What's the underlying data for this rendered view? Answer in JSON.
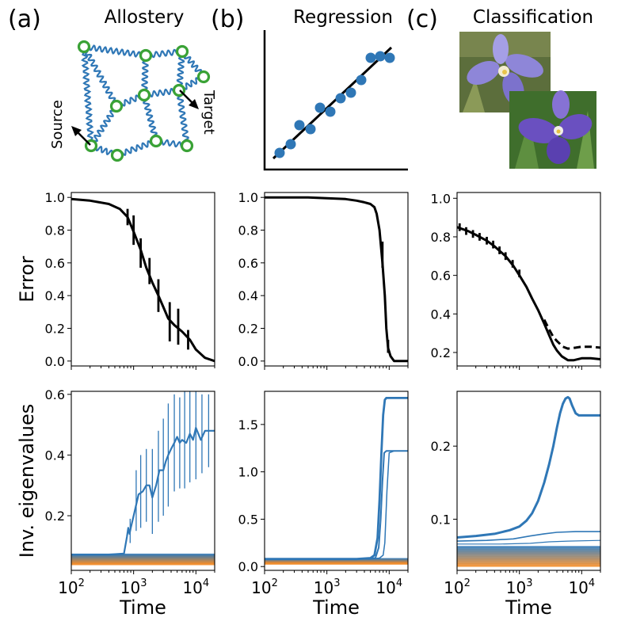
{
  "figure": {
    "panels": [
      {
        "letter": "(a)",
        "title": "Allostery"
      },
      {
        "letter": "(b)",
        "title": "Regression"
      },
      {
        "letter": "(c)",
        "title": "Classification"
      }
    ],
    "network": {
      "source_label": "Source",
      "target_label": "Target"
    },
    "colors": {
      "blue": "#2f77b6",
      "orange": "#f28c28",
      "green": "#3aa236",
      "black": "#000000",
      "iris_petal": "#8e86d8",
      "iris_dark": "#6a50c0"
    }
  },
  "chart_data": [
    {
      "type": "line",
      "panel": "a-error",
      "title": "",
      "xlabel": "",
      "ylabel": "Error",
      "xscale": "log",
      "xlim": [
        100,
        20000
      ],
      "ylim": [
        -0.03,
        1.03
      ],
      "yticks": [
        0.0,
        0.2,
        0.4,
        0.6,
        0.8,
        1.0
      ],
      "ytick_labels": [
        "0.0",
        "0.2",
        "0.4",
        "0.6",
        "0.8",
        "1.0"
      ],
      "series": [
        {
          "name": "error",
          "color": "#000000",
          "width": 3,
          "x": [
            100,
            200,
            400,
            600,
            800,
            1000,
            1300,
            1600,
            2000,
            2500,
            3000,
            3600,
            4500,
            6000,
            8000,
            10000,
            14000,
            20000
          ],
          "y": [
            0.99,
            0.98,
            0.96,
            0.93,
            0.88,
            0.79,
            0.68,
            0.57,
            0.48,
            0.4,
            0.33,
            0.26,
            0.22,
            0.18,
            0.13,
            0.07,
            0.02,
            0.0
          ]
        }
      ],
      "error_bars": [
        {
          "x": 800,
          "y": 0.88,
          "err": 0.05
        },
        {
          "x": 1000,
          "y": 0.8,
          "err": 0.09
        },
        {
          "x": 1300,
          "y": 0.66,
          "err": 0.09
        },
        {
          "x": 1800,
          "y": 0.55,
          "err": 0.08
        },
        {
          "x": 2500,
          "y": 0.4,
          "err": 0.1
        },
        {
          "x": 3800,
          "y": 0.24,
          "err": 0.12
        },
        {
          "x": 5200,
          "y": 0.21,
          "err": 0.11
        },
        {
          "x": 7500,
          "y": 0.13,
          "err": 0.06
        }
      ]
    },
    {
      "type": "line",
      "panel": "b-error",
      "title": "",
      "xlabel": "",
      "ylabel": "",
      "xscale": "log",
      "xlim": [
        100,
        20000
      ],
      "ylim": [
        -0.03,
        1.03
      ],
      "yticks": [
        0.0,
        0.2,
        0.4,
        0.6,
        0.8,
        1.0
      ],
      "ytick_labels": [
        "0.0",
        "0.2",
        "0.4",
        "0.6",
        "0.8",
        "1.0"
      ],
      "series": [
        {
          "name": "error",
          "color": "#000000",
          "width": 3,
          "x": [
            100,
            500,
            1000,
            2000,
            3000,
            4000,
            5000,
            5800,
            6300,
            7000,
            7800,
            8500,
            9000,
            9600,
            10500,
            12000,
            14000,
            20000
          ],
          "y": [
            1.0,
            1.0,
            0.995,
            0.99,
            0.98,
            0.97,
            0.96,
            0.94,
            0.9,
            0.8,
            0.6,
            0.4,
            0.2,
            0.08,
            0.03,
            0.0,
            0.0,
            0.0
          ]
        }
      ],
      "error_bars": [
        {
          "x": 7800,
          "y": 0.65,
          "err": 0.08
        },
        {
          "x": 9600,
          "y": 0.09,
          "err": 0.04
        }
      ]
    },
    {
      "type": "line",
      "panel": "c-error",
      "title": "",
      "xlabel": "",
      "ylabel": "",
      "xscale": "log",
      "xlim": [
        100,
        20000
      ],
      "ylim": [
        0.13,
        1.03
      ],
      "yticks": [
        0.2,
        0.4,
        0.6,
        0.8,
        1.0
      ],
      "ytick_labels": [
        "0.2",
        "0.4",
        "0.6",
        "0.8",
        "1.0"
      ],
      "series": [
        {
          "name": "error-solid",
          "color": "#000000",
          "width": 3,
          "x": [
            100,
            150,
            200,
            300,
            400,
            600,
            800,
            1000,
            1300,
            1600,
            2000,
            2500,
            3000,
            3500,
            4000,
            4800,
            6000,
            7500,
            10000,
            14000,
            20000
          ],
          "y": [
            0.85,
            0.83,
            0.81,
            0.78,
            0.75,
            0.7,
            0.65,
            0.6,
            0.54,
            0.48,
            0.42,
            0.35,
            0.29,
            0.24,
            0.21,
            0.18,
            0.16,
            0.16,
            0.17,
            0.17,
            0.165
          ]
        },
        {
          "name": "error-dashed",
          "color": "#000000",
          "width": 3,
          "dash": "9 5",
          "x": [
            2500,
            3000,
            3500,
            4000,
            5000,
            6000,
            8000,
            10000,
            14000,
            20000
          ],
          "y": [
            0.37,
            0.32,
            0.28,
            0.26,
            0.23,
            0.22,
            0.225,
            0.23,
            0.23,
            0.225
          ]
        }
      ],
      "error_bars": [
        {
          "x": 110,
          "y": 0.85,
          "err": 0.02
        },
        {
          "x": 140,
          "y": 0.83,
          "err": 0.02
        },
        {
          "x": 180,
          "y": 0.815,
          "err": 0.02
        },
        {
          "x": 230,
          "y": 0.8,
          "err": 0.02
        },
        {
          "x": 300,
          "y": 0.78,
          "err": 0.02
        },
        {
          "x": 380,
          "y": 0.76,
          "err": 0.02
        },
        {
          "x": 480,
          "y": 0.73,
          "err": 0.02
        },
        {
          "x": 600,
          "y": 0.7,
          "err": 0.02
        },
        {
          "x": 780,
          "y": 0.66,
          "err": 0.02
        },
        {
          "x": 1000,
          "y": 0.61,
          "err": 0.02
        }
      ]
    },
    {
      "type": "line",
      "panel": "a-eigen",
      "title": "",
      "xlabel": "Time",
      "ylabel": "Inv. eigenvalues",
      "xscale": "log",
      "xlim": [
        100,
        20000
      ],
      "ylim": [
        0.02,
        0.61
      ],
      "yticks": [
        0.2,
        0.4,
        0.6
      ],
      "ytick_labels": [
        "0.2",
        "0.4",
        "0.6"
      ],
      "xticks": [
        100,
        1000,
        10000
      ],
      "xtick_labels": [
        {
          "base": "10",
          "exp": "2"
        },
        {
          "base": "10",
          "exp": "3"
        },
        {
          "base": "10",
          "exp": "4"
        }
      ],
      "background_bands": {
        "y_top": 0.072,
        "y_bottom": 0.04,
        "count": 14
      },
      "series": [
        {
          "name": "top-eigen",
          "color": "#2f77b6",
          "width": 2.2,
          "x": [
            100,
            400,
            700,
            780,
            820,
            860,
            900,
            1000,
            1200,
            1400,
            1600,
            1800,
            2000,
            2300,
            2600,
            3000,
            3300,
            3600,
            4000,
            4500,
            5000,
            5500,
            6000,
            7000,
            8000,
            9000,
            10000,
            12000,
            14000,
            17000,
            20000
          ],
          "y": [
            0.072,
            0.072,
            0.075,
            0.13,
            0.16,
            0.14,
            0.16,
            0.2,
            0.27,
            0.28,
            0.3,
            0.3,
            0.26,
            0.3,
            0.35,
            0.35,
            0.38,
            0.4,
            0.42,
            0.44,
            0.46,
            0.44,
            0.45,
            0.44,
            0.47,
            0.45,
            0.49,
            0.45,
            0.48,
            0.48,
            0.48
          ]
        }
      ],
      "error_bars": [
        {
          "x": 880,
          "y": 0.15,
          "err": 0.04
        },
        {
          "x": 1100,
          "y": 0.25,
          "err": 0.1
        },
        {
          "x": 1300,
          "y": 0.28,
          "err": 0.12
        },
        {
          "x": 1600,
          "y": 0.3,
          "err": 0.12
        },
        {
          "x": 2000,
          "y": 0.28,
          "err": 0.14
        },
        {
          "x": 2500,
          "y": 0.33,
          "err": 0.15
        },
        {
          "x": 3000,
          "y": 0.36,
          "err": 0.16
        },
        {
          "x": 3600,
          "y": 0.4,
          "err": 0.17
        },
        {
          "x": 4500,
          "y": 0.44,
          "err": 0.16
        },
        {
          "x": 5500,
          "y": 0.44,
          "err": 0.15
        },
        {
          "x": 6600,
          "y": 0.45,
          "err": 0.16
        },
        {
          "x": 8000,
          "y": 0.47,
          "err": 0.16
        },
        {
          "x": 10000,
          "y": 0.47,
          "err": 0.15
        },
        {
          "x": 12500,
          "y": 0.47,
          "err": 0.13
        },
        {
          "x": 16000,
          "y": 0.48,
          "err": 0.12
        }
      ]
    },
    {
      "type": "line",
      "panel": "b-eigen",
      "title": "",
      "xlabel": "Time",
      "ylabel": "",
      "xscale": "log",
      "xlim": [
        100,
        20000
      ],
      "ylim": [
        -0.04,
        1.85
      ],
      "yticks": [
        0.0,
        0.5,
        1.0,
        1.5
      ],
      "ytick_labels": [
        "0.0",
        "0.5",
        "1.0",
        "1.5"
      ],
      "xticks": [
        100,
        1000,
        10000
      ],
      "xtick_labels": [
        {
          "base": "10",
          "exp": "2"
        },
        {
          "base": "10",
          "exp": "3"
        },
        {
          "base": "10",
          "exp": "4"
        }
      ],
      "background_bands": {
        "y_top": 0.08,
        "y_bottom": 0.03,
        "count": 10
      },
      "series": [
        {
          "name": "top-eigen-1",
          "color": "#2f77b6",
          "width": 2.8,
          "x": [
            100,
            1000,
            3000,
            5000,
            5800,
            6500,
            7000,
            7500,
            8000,
            8500,
            9000,
            10000,
            12000,
            20000
          ],
          "y": [
            0.08,
            0.08,
            0.08,
            0.09,
            0.12,
            0.3,
            0.7,
            1.2,
            1.6,
            1.76,
            1.78,
            1.78,
            1.78,
            1.78
          ]
        },
        {
          "name": "top-eigen-2",
          "color": "#2f77b6",
          "width": 2,
          "x": [
            100,
            3000,
            6000,
            6800,
            7300,
            7800,
            8300,
            9000,
            10000,
            11000,
            12000,
            20000
          ],
          "y": [
            0.08,
            0.08,
            0.09,
            0.2,
            0.5,
            0.9,
            1.2,
            1.22,
            1.22,
            1.22,
            1.22,
            1.22
          ]
        },
        {
          "name": "top-eigen-3",
          "color": "#2f77b6",
          "width": 1.5,
          "x": [
            100,
            5000,
            7000,
            8000,
            8500,
            9200,
            10000,
            12000,
            20000
          ],
          "y": [
            0.08,
            0.08,
            0.09,
            0.12,
            0.25,
            0.8,
            1.2,
            1.22,
            1.22
          ]
        }
      ],
      "error_bars": []
    },
    {
      "type": "line",
      "panel": "c-eigen",
      "title": "",
      "xlabel": "Time",
      "ylabel": "",
      "xscale": "log",
      "xlim": [
        100,
        20000
      ],
      "ylim": [
        0.03,
        0.275
      ],
      "yticks": [
        0.1,
        0.2
      ],
      "ytick_labels": [
        "0.1",
        "0.2"
      ],
      "xticks": [
        100,
        1000,
        10000
      ],
      "xtick_labels": [
        {
          "base": "10",
          "exp": "2"
        },
        {
          "base": "10",
          "exp": "3"
        },
        {
          "base": "10",
          "exp": "4"
        }
      ],
      "background_bands": {
        "y_top": 0.062,
        "y_bottom": 0.036,
        "count": 14
      },
      "series": [
        {
          "name": "top-eigen",
          "color": "#2f77b6",
          "width": 3,
          "x": [
            100,
            200,
            400,
            700,
            1000,
            1300,
            1600,
            2000,
            2500,
            3000,
            3500,
            4000,
            4500,
            5000,
            5500,
            6000,
            6400,
            7000,
            8000,
            9000,
            10000,
            14000,
            20000
          ],
          "y": [
            0.075,
            0.077,
            0.08,
            0.085,
            0.09,
            0.098,
            0.108,
            0.125,
            0.15,
            0.175,
            0.2,
            0.225,
            0.245,
            0.258,
            0.265,
            0.267,
            0.265,
            0.256,
            0.245,
            0.242,
            0.242,
            0.242,
            0.242
          ]
        },
        {
          "name": "second-eigen",
          "color": "#2f77b6",
          "width": 1.6,
          "x": [
            100,
            300,
            800,
            1500,
            2500,
            4000,
            8000,
            20000
          ],
          "y": [
            0.07,
            0.071,
            0.073,
            0.077,
            0.08,
            0.082,
            0.083,
            0.083
          ]
        },
        {
          "name": "third-eigen",
          "color": "#2f77b6",
          "width": 1.2,
          "x": [
            100,
            500,
            1500,
            3000,
            6000,
            20000
          ],
          "y": [
            0.066,
            0.066,
            0.067,
            0.069,
            0.07,
            0.071
          ]
        }
      ],
      "error_bars": []
    }
  ]
}
